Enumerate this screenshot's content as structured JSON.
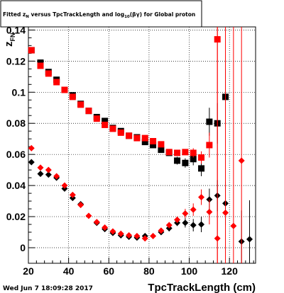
{
  "chart_data": {
    "type": "scatter",
    "title_main": "Fitted  z",
    "title_sub": "N",
    "title_rest": "  versus TpcTrackLength and log",
    "title_sub2": "10",
    "title_end": "(βγ) for Global proton",
    "xlabel": "TpcTrackLength (cm)",
    "ylabel": "z",
    "ylabel_sub": "FN",
    "date": "Wed Jun  7 18:09:28 2017",
    "xlim": [
      20,
      133
    ],
    "ylim": [
      -0.01,
      0.142
    ],
    "grid": true,
    "xticks": [
      20,
      40,
      60,
      80,
      100,
      120
    ],
    "yticks": [
      0,
      0.02,
      0.04,
      0.06,
      0.08,
      0.1,
      0.12,
      0.14
    ],
    "ytick_labels": [
      "0",
      "0.02",
      "0.04",
      "0.06",
      "0.08",
      "0.1",
      "0.12",
      "0.14"
    ],
    "series": [
      {
        "color": "#000000",
        "marker": "square",
        "points": [
          {
            "x": 21.5,
            "y": 0.127,
            "e": 0.002
          },
          {
            "x": 26,
            "y": 0.119,
            "e": 0.0015
          },
          {
            "x": 30,
            "y": 0.113,
            "e": 0.0015
          },
          {
            "x": 34,
            "y": 0.108,
            "e": 0.0015
          },
          {
            "x": 38,
            "y": 0.1015,
            "e": 0.0015
          },
          {
            "x": 42,
            "y": 0.098,
            "e": 0.0015
          },
          {
            "x": 46,
            "y": 0.0925,
            "e": 0.0015
          },
          {
            "x": 50,
            "y": 0.088,
            "e": 0.0015
          },
          {
            "x": 54,
            "y": 0.084,
            "e": 0.0015
          },
          {
            "x": 58,
            "y": 0.0815,
            "e": 0.0015
          },
          {
            "x": 62,
            "y": 0.077,
            "e": 0.0015
          },
          {
            "x": 66,
            "y": 0.075,
            "e": 0.0015
          },
          {
            "x": 70,
            "y": 0.072,
            "e": 0.0015
          },
          {
            "x": 74,
            "y": 0.071,
            "e": 0.0015
          },
          {
            "x": 78,
            "y": 0.068,
            "e": 0.0015
          },
          {
            "x": 82,
            "y": 0.066,
            "e": 0.0015
          },
          {
            "x": 86,
            "y": 0.063,
            "e": 0.002
          },
          {
            "x": 90,
            "y": 0.061,
            "e": 0.002
          },
          {
            "x": 94,
            "y": 0.056,
            "e": 0.0025
          },
          {
            "x": 98,
            "y": 0.0545,
            "e": 0.003
          },
          {
            "x": 102,
            "y": 0.057,
            "e": 0.004
          },
          {
            "x": 106,
            "y": 0.051,
            "e": 0.005
          },
          {
            "x": 110,
            "y": 0.081,
            "e": 0.009
          },
          {
            "x": 114,
            "y": 0.08,
            "e": 0.013
          },
          {
            "x": 118,
            "y": 0.097,
            "e": 0.018
          }
        ]
      },
      {
        "color": "#ff0000",
        "marker": "square",
        "points": [
          {
            "x": 21.5,
            "y": 0.127,
            "e": 0.002
          },
          {
            "x": 26,
            "y": 0.117,
            "e": 0.0015
          },
          {
            "x": 30,
            "y": 0.112,
            "e": 0.0015
          },
          {
            "x": 34,
            "y": 0.1065,
            "e": 0.0015
          },
          {
            "x": 38,
            "y": 0.1015,
            "e": 0.0015
          },
          {
            "x": 42,
            "y": 0.097,
            "e": 0.0015
          },
          {
            "x": 46,
            "y": 0.092,
            "e": 0.0015
          },
          {
            "x": 50,
            "y": 0.088,
            "e": 0.0015
          },
          {
            "x": 54,
            "y": 0.083,
            "e": 0.0015
          },
          {
            "x": 58,
            "y": 0.079,
            "e": 0.0015
          },
          {
            "x": 62,
            "y": 0.0765,
            "e": 0.0015
          },
          {
            "x": 66,
            "y": 0.074,
            "e": 0.0015
          },
          {
            "x": 70,
            "y": 0.072,
            "e": 0.0015
          },
          {
            "x": 74,
            "y": 0.0705,
            "e": 0.0015
          },
          {
            "x": 78,
            "y": 0.0705,
            "e": 0.0015
          },
          {
            "x": 82,
            "y": 0.0685,
            "e": 0.0015
          },
          {
            "x": 86,
            "y": 0.0665,
            "e": 0.0015
          },
          {
            "x": 90,
            "y": 0.0615,
            "e": 0.002
          },
          {
            "x": 94,
            "y": 0.061,
            "e": 0.002
          },
          {
            "x": 98,
            "y": 0.0615,
            "e": 0.002
          },
          {
            "x": 102,
            "y": 0.061,
            "e": 0.003
          },
          {
            "x": 106,
            "y": 0.058,
            "e": 0.004
          },
          {
            "x": 110,
            "y": 0.066,
            "e": 0.008
          },
          {
            "x": 114,
            "y": 0.134,
            "e": 0.16
          }
        ]
      },
      {
        "color": "#000000",
        "marker": "diamond",
        "points": [
          {
            "x": 21.5,
            "y": 0.055,
            "e": 0.001
          },
          {
            "x": 26,
            "y": 0.0475,
            "e": 0.001
          },
          {
            "x": 30,
            "y": 0.047,
            "e": 0.001
          },
          {
            "x": 34,
            "y": 0.045,
            "e": 0.001
          },
          {
            "x": 38,
            "y": 0.038,
            "e": 0.001
          },
          {
            "x": 42,
            "y": 0.032,
            "e": 0.001
          },
          {
            "x": 46,
            "y": 0.028,
            "e": 0.001
          },
          {
            "x": 54,
            "y": 0.016,
            "e": 0.001
          },
          {
            "x": 58,
            "y": 0.012,
            "e": 0.001
          },
          {
            "x": 62,
            "y": 0.0095,
            "e": 0.001
          },
          {
            "x": 66,
            "y": 0.008,
            "e": 0.001
          },
          {
            "x": 70,
            "y": 0.007,
            "e": 0.001
          },
          {
            "x": 74,
            "y": 0.0065,
            "e": 0.001
          },
          {
            "x": 78,
            "y": 0.0075,
            "e": 0.001
          },
          {
            "x": 86,
            "y": 0.01,
            "e": 0.0015
          },
          {
            "x": 90,
            "y": 0.0125,
            "e": 0.002
          },
          {
            "x": 94,
            "y": 0.016,
            "e": 0.002
          },
          {
            "x": 98,
            "y": 0.016,
            "e": 0.003
          },
          {
            "x": 102,
            "y": 0.0145,
            "e": 0.004
          },
          {
            "x": 106,
            "y": 0.015,
            "e": 0.005
          },
          {
            "x": 110,
            "y": 0.031,
            "e": 0.007
          },
          {
            "x": 114,
            "y": 0.0335,
            "e": 0.01
          },
          {
            "x": 118,
            "y": 0.0285,
            "e": 0.014
          },
          {
            "x": 126,
            "y": 0.004,
            "e": 0.02
          },
          {
            "x": 130,
            "y": 0.0055,
            "e": 0.025
          }
        ]
      },
      {
        "color": "#ff0000",
        "marker": "diamond",
        "points": [
          {
            "x": 21.5,
            "y": 0.064,
            "e": 0.001
          },
          {
            "x": 26,
            "y": 0.0515,
            "e": 0.001
          },
          {
            "x": 30,
            "y": 0.05,
            "e": 0.001
          },
          {
            "x": 34,
            "y": 0.046,
            "e": 0.001
          },
          {
            "x": 38,
            "y": 0.04,
            "e": 0.001
          },
          {
            "x": 42,
            "y": 0.034,
            "e": 0.001
          },
          {
            "x": 46,
            "y": 0.0275,
            "e": 0.001
          },
          {
            "x": 50,
            "y": 0.0205,
            "e": 0.001
          },
          {
            "x": 54,
            "y": 0.0165,
            "e": 0.001
          },
          {
            "x": 58,
            "y": 0.013,
            "e": 0.001
          },
          {
            "x": 62,
            "y": 0.0105,
            "e": 0.001
          },
          {
            "x": 66,
            "y": 0.009,
            "e": 0.001
          },
          {
            "x": 70,
            "y": 0.008,
            "e": 0.001
          },
          {
            "x": 74,
            "y": 0.0075,
            "e": 0.001
          },
          {
            "x": 78,
            "y": 0.006,
            "e": 0.001
          },
          {
            "x": 82,
            "y": 0.0075,
            "e": 0.001
          },
          {
            "x": 86,
            "y": 0.011,
            "e": 0.0015
          },
          {
            "x": 90,
            "y": 0.0145,
            "e": 0.002
          },
          {
            "x": 94,
            "y": 0.018,
            "e": 0.002
          },
          {
            "x": 98,
            "y": 0.022,
            "e": 0.003
          },
          {
            "x": 102,
            "y": 0.0245,
            "e": 0.004
          },
          {
            "x": 106,
            "y": 0.0325,
            "e": 0.005
          },
          {
            "x": 110,
            "y": 0.023,
            "e": 0.008
          },
          {
            "x": 114,
            "y": 0.006,
            "e": 0.15
          },
          {
            "x": 118,
            "y": 0.0225,
            "e": 0.15
          },
          {
            "x": 122,
            "y": 0.014,
            "e": 0.15
          },
          {
            "x": 126,
            "y": 0.056,
            "e": 0.15
          }
        ]
      }
    ]
  }
}
